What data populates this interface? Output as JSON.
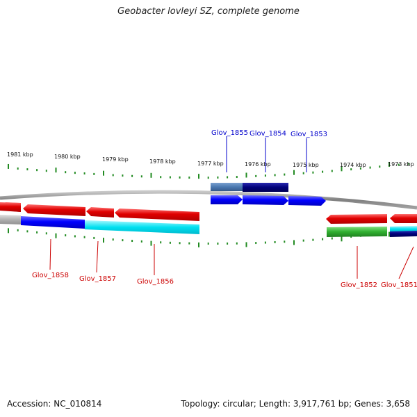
{
  "title": "Geobacter lovleyi SZ, complete genome",
  "footer": {
    "accession": "Accession: NC_010814",
    "topology": "Topology: circular; Length: 3,917,761 bp; Genes: 3,658"
  },
  "scale_labels": [
    "1981 kbp",
    "1980 kbp",
    "1979 kbp",
    "1978 kbp",
    "1977 kbp",
    "1976 kbp",
    "1975 kbp",
    "1974 kbp",
    "1973 kbp"
  ],
  "labels_top": [
    {
      "text": "Glov_1855",
      "color": "#0000cc"
    },
    {
      "text": "Glov_1854",
      "color": "#0000cc"
    },
    {
      "text": "Glov_1853",
      "color": "#0000cc"
    }
  ],
  "labels_bottom": [
    {
      "text": "Glov_1858",
      "color": "#cc0000"
    },
    {
      "text": "Glov_1857",
      "color": "#cc0000"
    },
    {
      "text": "Glov_1856",
      "color": "#cc0000"
    },
    {
      "text": "Glov_1852",
      "color": "#cc0000"
    },
    {
      "text": "Glov_1851",
      "color": "#cc0000"
    }
  ],
  "colors": {
    "tick": "#228b22",
    "backbone": "#888888",
    "reverse_gene": "#e00000",
    "forward_gene": "#0000ff",
    "highlight_blue": "#4a78b0",
    "dark_navy": "#00007a",
    "cyan": "#00e0f0",
    "green": "#30b030",
    "grey": "#b0b0b0"
  }
}
